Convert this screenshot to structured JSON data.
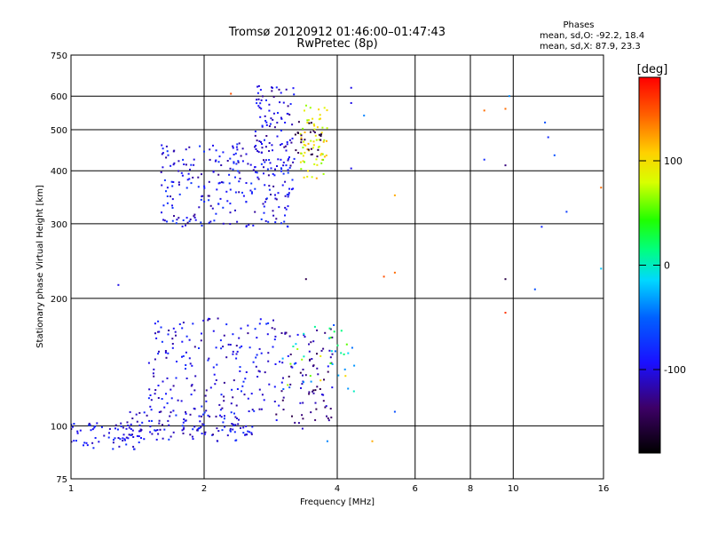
{
  "chart_data": {
    "type": "scatter",
    "title": "Tromsø 20120912 01:46:00–01:47:43",
    "subtitle": "RwPretec (8p)",
    "xlabel": "Frequency [MHz]",
    "ylabel": "Stationary phase Virtual Height [km]",
    "xscale": "log",
    "yscale": "log",
    "xlim": [
      1,
      16
    ],
    "ylim": [
      75,
      750
    ],
    "xticks": [
      1,
      2,
      4,
      6,
      8,
      10,
      16
    ],
    "xtick_labels": [
      "1",
      "2",
      "4",
      "6",
      "8",
      "10",
      "16"
    ],
    "yticks": [
      75,
      100,
      200,
      300,
      400,
      500,
      600,
      750
    ],
    "ytick_labels": [
      "75",
      "100",
      "200",
      "300",
      "400",
      "500",
      "600",
      "750"
    ],
    "grid": true,
    "stats": {
      "heading": "Phases",
      "o_line": "mean, sd,O: -92.2, 18.4",
      "x_line": "mean, sd,X: 87.9, 23.3"
    },
    "colorbar": {
      "label": "[deg]",
      "range": [
        -180,
        180
      ],
      "ticks": [
        100,
        0,
        -100
      ],
      "tick_labels": [
        "100",
        "0",
        "-100"
      ],
      "colormap": "rainbow"
    },
    "clusters": [
      {
        "n": 70,
        "x": [
          1.0,
          1.45
        ],
        "y": [
          88,
          102
        ],
        "phase": [
          -120,
          -75
        ]
      },
      {
        "n": 120,
        "x": [
          1.35,
          2.6
        ],
        "y": [
          92,
          108
        ],
        "phase": [
          -125,
          -70
        ]
      },
      {
        "n": 180,
        "x": [
          1.5,
          2.9
        ],
        "y": [
          108,
          180
        ],
        "phase": [
          -125,
          -75
        ]
      },
      {
        "n": 90,
        "x": [
          2.9,
          3.9
        ],
        "y": [
          98,
          170
        ],
        "phase": [
          -150,
          -90
        ]
      },
      {
        "n": 40,
        "x": [
          3.0,
          4.4
        ],
        "y": [
          120,
          175
        ],
        "phase": [
          -60,
          110
        ]
      },
      {
        "n": 250,
        "x": [
          1.6,
          3.2
        ],
        "y": [
          295,
          470
        ],
        "phase": [
          -125,
          -70
        ]
      },
      {
        "n": 90,
        "x": [
          2.6,
          3.2
        ],
        "y": [
          400,
          640
        ],
        "phase": [
          -130,
          -80
        ]
      },
      {
        "n": 70,
        "x": [
          3.3,
          3.8
        ],
        "y": [
          380,
          580
        ],
        "phase": [
          60,
          120
        ]
      },
      {
        "n": 25,
        "x": [
          3.2,
          3.7
        ],
        "y": [
          430,
          530
        ],
        "phase": [
          -160,
          -140
        ]
      }
    ],
    "outliers": [
      {
        "x": 1.28,
        "y": 215,
        "phase": -100
      },
      {
        "x": 2.3,
        "y": 608,
        "phase": 150
      },
      {
        "x": 3.4,
        "y": 222,
        "phase": -145
      },
      {
        "x": 4.3,
        "y": 628,
        "phase": -100
      },
      {
        "x": 4.3,
        "y": 578,
        "phase": -100
      },
      {
        "x": 4.3,
        "y": 405,
        "phase": -100
      },
      {
        "x": 4.6,
        "y": 540,
        "phase": -40
      },
      {
        "x": 5.1,
        "y": 225,
        "phase": 150
      },
      {
        "x": 5.4,
        "y": 230,
        "phase": 140
      },
      {
        "x": 5.4,
        "y": 108,
        "phase": -60
      },
      {
        "x": 5.4,
        "y": 350,
        "phase": 120
      },
      {
        "x": 4.8,
        "y": 92,
        "phase": 120
      },
      {
        "x": 3.8,
        "y": 92,
        "phase": -40
      },
      {
        "x": 8.6,
        "y": 555,
        "phase": 140
      },
      {
        "x": 8.6,
        "y": 425,
        "phase": -80
      },
      {
        "x": 9.6,
        "y": 560,
        "phase": 140
      },
      {
        "x": 9.6,
        "y": 412,
        "phase": -130
      },
      {
        "x": 9.6,
        "y": 222,
        "phase": -150
      },
      {
        "x": 9.6,
        "y": 185,
        "phase": 160
      },
      {
        "x": 9.8,
        "y": 600,
        "phase": -40
      },
      {
        "x": 11.8,
        "y": 520,
        "phase": -60
      },
      {
        "x": 12.0,
        "y": 480,
        "phase": -80
      },
      {
        "x": 12.4,
        "y": 435,
        "phase": -60
      },
      {
        "x": 11.6,
        "y": 295,
        "phase": -80
      },
      {
        "x": 13.2,
        "y": 320,
        "phase": -70
      },
      {
        "x": 11.2,
        "y": 210,
        "phase": -60
      },
      {
        "x": 15.8,
        "y": 365,
        "phase": 140
      },
      {
        "x": 15.8,
        "y": 235,
        "phase": -20
      }
    ]
  }
}
